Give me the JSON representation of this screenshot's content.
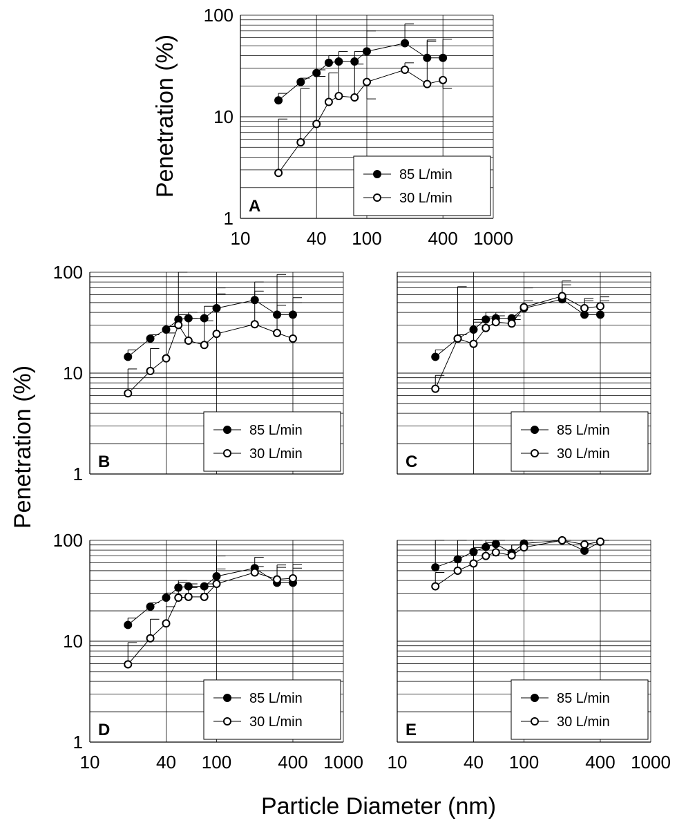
{
  "figure": {
    "y_axis_label": "Penetration (%)",
    "x_axis_label": "Particle Diameter (nm)"
  },
  "chart_data": [
    {
      "panel": "A",
      "type": "scatter",
      "x_scale": "log",
      "y_scale": "log",
      "xlim": [
        10,
        1000
      ],
      "ylim": [
        1,
        100
      ],
      "x_ticks": [
        "10",
        "40",
        "100",
        "400",
        "1000"
      ],
      "y_ticks": [
        "1",
        "10",
        "100"
      ],
      "x_tick_labels_shown": true,
      "y_tick_labels_shown": true,
      "ylabel": "Penetration (%)",
      "grid": true,
      "legend": "bottom-right",
      "series": [
        {
          "name": "85 L/min",
          "marker": "filled-circle",
          "x": [
            20,
            30,
            40,
            50,
            60,
            80,
            100,
            200,
            300,
            400
          ],
          "y": [
            14.5,
            22,
            27,
            34,
            35,
            35,
            44,
            53,
            38,
            38
          ],
          "err_upper": [
            17,
            24,
            29,
            40,
            44,
            44,
            70,
            82,
            57,
            58
          ]
        },
        {
          "name": "30 L/min",
          "marker": "open-circle",
          "x": [
            20,
            30,
            40,
            50,
            60,
            80,
            100,
            200,
            300,
            400
          ],
          "y": [
            2.8,
            5.6,
            8.5,
            14,
            16,
            15.5,
            22,
            29,
            21,
            23
          ],
          "err_upper": [
            9.5,
            19,
            25,
            27,
            35,
            33,
            15,
            34,
            55,
            19
          ]
        }
      ]
    },
    {
      "panel": "B",
      "type": "scatter",
      "x_scale": "log",
      "y_scale": "log",
      "xlim": [
        10,
        1000
      ],
      "ylim": [
        1,
        100
      ],
      "x_ticks": [
        "10",
        "40",
        "100",
        "400",
        "1000"
      ],
      "y_ticks": [
        "1",
        "10",
        "100"
      ],
      "x_tick_labels_shown": false,
      "y_tick_labels_shown": true,
      "grid": true,
      "legend": "bottom-right",
      "series": [
        {
          "name": "85 L/min",
          "marker": "filled-circle",
          "x": [
            20,
            30,
            40,
            50,
            60,
            80,
            100,
            200,
            300,
            400
          ],
          "y": [
            14.5,
            22,
            27,
            34,
            35,
            35,
            44,
            53,
            38,
            38
          ],
          "err_upper": [
            17,
            24,
            29,
            100,
            40,
            46,
            70,
            80,
            95,
            56
          ]
        },
        {
          "name": "30 L/min",
          "marker": "open-circle",
          "x": [
            20,
            30,
            40,
            50,
            60,
            80,
            100,
            200,
            300,
            400
          ],
          "y": [
            6.3,
            10.5,
            14,
            30,
            21,
            19,
            24.5,
            30.5,
            25,
            22
          ],
          "err_upper": [
            11,
            17.5,
            25,
            38,
            35,
            33,
            61,
            65,
            47,
            50
          ]
        }
      ]
    },
    {
      "panel": "C",
      "type": "scatter",
      "x_scale": "log",
      "y_scale": "log",
      "xlim": [
        10,
        1000
      ],
      "ylim": [
        1,
        100
      ],
      "x_ticks": [
        "10",
        "40",
        "100",
        "400",
        "1000"
      ],
      "y_ticks": [
        "1",
        "10",
        "100"
      ],
      "x_tick_labels_shown": false,
      "y_tick_labels_shown": false,
      "grid": true,
      "legend": "bottom-right",
      "series": [
        {
          "name": "85 L/min",
          "marker": "filled-circle",
          "x": [
            20,
            30,
            40,
            50,
            60,
            80,
            100,
            200,
            300,
            400
          ],
          "y": [
            14.5,
            22,
            27,
            34,
            35,
            35,
            44,
            54,
            38,
            38
          ],
          "err_upper": [
            17,
            24,
            32,
            40,
            40,
            37,
            70,
            82,
            55,
            57
          ]
        },
        {
          "name": "30 L/min",
          "marker": "open-circle",
          "x": [
            20,
            30,
            40,
            50,
            60,
            80,
            100,
            200,
            300,
            400
          ],
          "y": [
            7,
            22,
            19.5,
            28,
            32,
            31,
            45,
            58,
            44,
            46
          ],
          "err_upper": [
            9.5,
            72,
            34,
            36,
            37,
            34,
            52,
            75,
            52,
            52
          ]
        }
      ]
    },
    {
      "panel": "D",
      "type": "scatter",
      "x_scale": "log",
      "y_scale": "log",
      "xlim": [
        10,
        1000
      ],
      "ylim": [
        1,
        100
      ],
      "x_ticks": [
        "10",
        "40",
        "100",
        "400",
        "1000"
      ],
      "y_ticks": [
        "1",
        "10",
        "100"
      ],
      "x_tick_labels_shown": true,
      "y_tick_labels_shown": true,
      "grid": true,
      "legend": "bottom-right",
      "series": [
        {
          "name": "85 L/min",
          "marker": "filled-circle",
          "x": [
            20,
            30,
            40,
            50,
            60,
            80,
            100,
            200,
            300,
            400
          ],
          "y": [
            14.5,
            22,
            27,
            34,
            35,
            35,
            44,
            53,
            38,
            38
          ],
          "err_upper": [
            17,
            24,
            30,
            40,
            37,
            37,
            70,
            68,
            57,
            58
          ]
        },
        {
          "name": "30 L/min",
          "marker": "open-circle",
          "x": [
            20,
            30,
            40,
            50,
            60,
            80,
            100,
            200,
            300,
            400
          ],
          "y": [
            5.9,
            10.7,
            15,
            27,
            27.5,
            27.5,
            37,
            48,
            41,
            42
          ],
          "err_upper": [
            9.7,
            16.5,
            22,
            38,
            34,
            35,
            52,
            55,
            54,
            53
          ]
        }
      ]
    },
    {
      "panel": "E",
      "type": "scatter",
      "x_scale": "log",
      "y_scale": "log",
      "xlim": [
        10,
        1000
      ],
      "ylim": [
        1,
        100
      ],
      "x_ticks": [
        "10",
        "40",
        "100",
        "400",
        "1000"
      ],
      "y_ticks": [
        "1",
        "10",
        "100"
      ],
      "x_tick_labels_shown": true,
      "y_tick_labels_shown": false,
      "grid": true,
      "legend": "bottom-right",
      "series": [
        {
          "name": "85 L/min",
          "marker": "filled-circle",
          "x": [
            20,
            30,
            40,
            50,
            60,
            80,
            100,
            200,
            300,
            400
          ],
          "y": [
            54,
            65,
            77,
            86,
            92,
            75,
            93,
            103,
            79,
            97
          ],
          "err_upper": [
            107,
            126,
            145,
            142,
            120,
            90,
            126,
            110,
            100,
            108
          ]
        },
        {
          "name": "30 L/min",
          "marker": "open-circle",
          "x": [
            20,
            30,
            40,
            50,
            60,
            80,
            100,
            200,
            300,
            400
          ],
          "y": [
            35,
            50,
            59,
            70,
            76,
            71,
            85,
            103,
            91,
            97
          ],
          "err_upper": [
            48,
            70,
            85,
            95,
            100,
            90,
            110,
            112,
            103,
            170
          ]
        }
      ]
    }
  ]
}
